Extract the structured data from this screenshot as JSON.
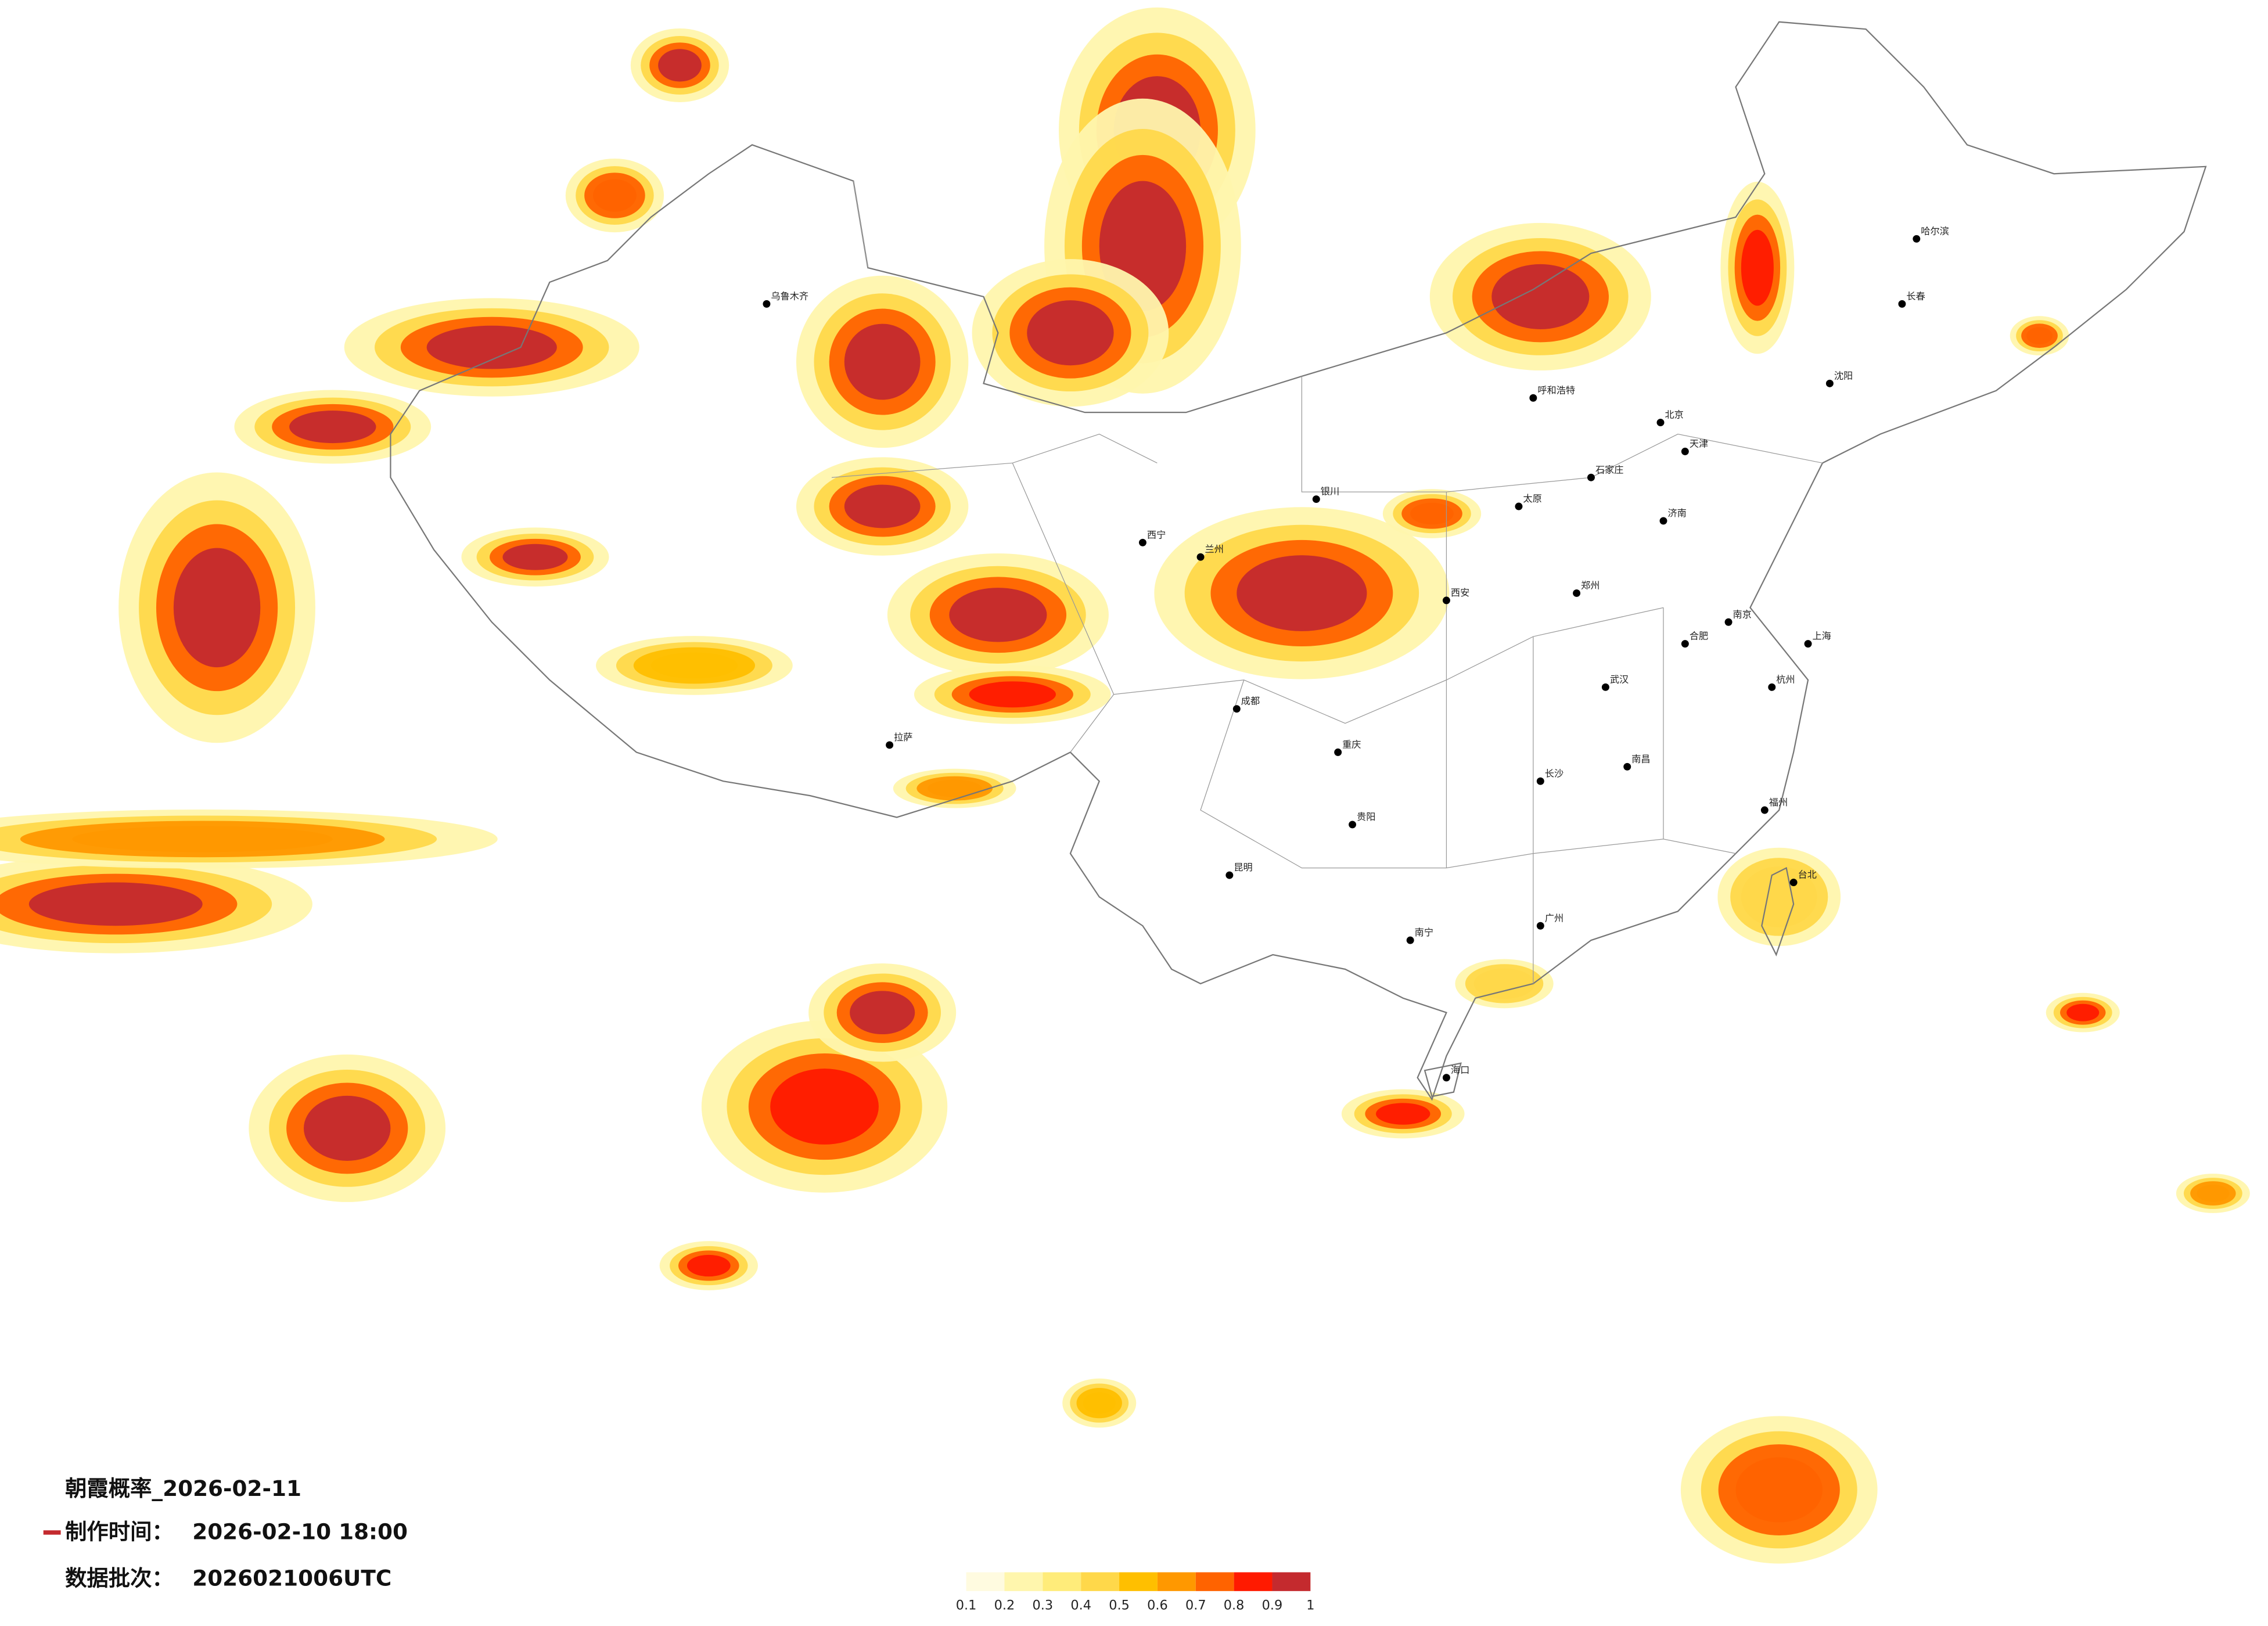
{
  "header": {
    "title": "朝霞概率_2026-02-11",
    "made_label": "制作时间：",
    "made_value": "2026-02-10 18:00",
    "batch_label": "数据批次：",
    "batch_value": "2026021006UTC"
  },
  "legend": {
    "ticks": [
      0.1,
      0.2,
      0.3,
      0.4,
      0.5,
      0.6,
      0.7,
      0.8,
      0.9,
      1
    ],
    "colors": [
      "#fffbe0",
      "#fff6ad",
      "#ffec7a",
      "#ffd84a",
      "#ffbf00",
      "#ff9800",
      "#ff6300",
      "#ff1a00",
      "#c42a2e"
    ]
  },
  "cities": [
    "北京",
    "天津",
    "石家庄",
    "太原",
    "呼和浩特",
    "沈阳",
    "长春",
    "哈尔滨",
    "济南",
    "郑州",
    "西安",
    "兰州",
    "西宁",
    "银川",
    "乌鲁木齐",
    "拉萨",
    "成都",
    "重庆",
    "贵阳",
    "昆明",
    "南宁",
    "广州",
    "长沙",
    "武汉",
    "南昌",
    "合肥",
    "南京",
    "杭州",
    "上海",
    "福州",
    "台北",
    "海口"
  ]
}
